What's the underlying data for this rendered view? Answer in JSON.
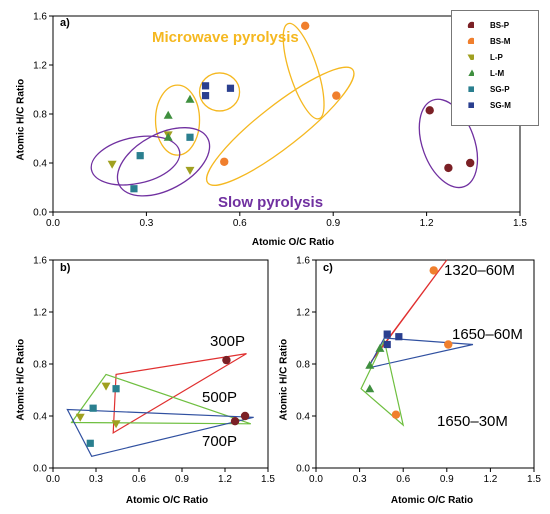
{
  "colors": {
    "BS-P": "#7b2025",
    "BS-M": "#f07f2d",
    "L-P": "#a0a020",
    "L-M": "#3f8f3f",
    "SG-P": "#2a7f8f",
    "SG-M": "#2a3f8f",
    "microwave_outline": "#f5b820",
    "slow_outline": "#7030a0",
    "tri_300": "#e03030",
    "tri_500": "#6fbf40",
    "tri_700": "#3050a0"
  },
  "text": {
    "panel_a": "a)",
    "panel_b": "b)",
    "panel_c": "c)",
    "microwave": "Microwave pyrolysis",
    "slow": "Slow pyrolysis",
    "ann_300P": "300P",
    "ann_500P": "500P",
    "ann_700P": "700P",
    "ann_1320": "1320–60M",
    "ann_1650_60": "1650–60M",
    "ann_1650_30": "1650–30M"
  },
  "chart_data": [
    {
      "type": "scatter",
      "panel": "a",
      "xlabel": "Atomic O/C Ratio",
      "ylabel": "Atomic H/C Ratio",
      "xlim": [
        0,
        1.5
      ],
      "ylim": [
        0,
        1.6
      ],
      "xticks": [
        "0.0",
        "0.3",
        "0.6",
        "0.9",
        "1.2",
        "1.5"
      ],
      "yticks": [
        "0.0",
        "0.4",
        "0.8",
        "1.2",
        "1.6"
      ],
      "legend": "top-right",
      "series": [
        {
          "name": "BS-P",
          "marker": "circle",
          "points": [
            [
              1.21,
              0.83
            ],
            [
              1.27,
              0.36
            ],
            [
              1.34,
              0.4
            ]
          ]
        },
        {
          "name": "BS-M",
          "marker": "circle",
          "points": [
            [
              0.81,
              1.52
            ],
            [
              0.91,
              0.95
            ],
            [
              0.55,
              0.41
            ]
          ]
        },
        {
          "name": "L-P",
          "marker": "triangle-down",
          "points": [
            [
              0.19,
              0.39
            ],
            [
              0.37,
              0.63
            ],
            [
              0.44,
              0.34
            ]
          ]
        },
        {
          "name": "L-M",
          "marker": "triangle-up",
          "points": [
            [
              0.37,
              0.79
            ],
            [
              0.44,
              0.92
            ],
            [
              0.37,
              0.61
            ]
          ]
        },
        {
          "name": "SG-P",
          "marker": "square",
          "points": [
            [
              0.28,
              0.46
            ],
            [
              0.26,
              0.19
            ],
            [
              0.44,
              0.61
            ]
          ]
        },
        {
          "name": "SG-M",
          "marker": "square",
          "points": [
            [
              0.49,
              1.03
            ],
            [
              0.49,
              0.95
            ],
            [
              0.57,
              1.01
            ]
          ]
        }
      ]
    },
    {
      "type": "scatter",
      "panel": "b",
      "xlabel": "Atomic O/C Ratio",
      "ylabel": "Atomic H/C Ratio",
      "xlim": [
        0,
        1.5
      ],
      "ylim": [
        0,
        1.6
      ],
      "xticks": [
        "0.0",
        "0.3",
        "0.6",
        "0.9",
        "1.2",
        "1.5"
      ],
      "yticks": [
        "0.0",
        "0.4",
        "0.8",
        "1.2",
        "1.6"
      ],
      "series": [
        {
          "name": "BS-P",
          "marker": "circle",
          "points": [
            [
              1.21,
              0.83
            ],
            [
              1.27,
              0.36
            ],
            [
              1.34,
              0.4
            ]
          ]
        },
        {
          "name": "L-P",
          "marker": "triangle-down",
          "points": [
            [
              0.19,
              0.39
            ],
            [
              0.37,
              0.63
            ],
            [
              0.44,
              0.34
            ]
          ]
        },
        {
          "name": "SG-P",
          "marker": "square",
          "points": [
            [
              0.28,
              0.46
            ],
            [
              0.26,
              0.19
            ],
            [
              0.44,
              0.61
            ]
          ]
        }
      ],
      "triangles": [
        {
          "label": "300P",
          "vertices": [
            [
              0.42,
              0.27
            ],
            [
              1.35,
              0.88
            ],
            [
              0.44,
              0.72
            ]
          ]
        },
        {
          "label": "500P",
          "vertices": [
            [
              0.13,
              0.35
            ],
            [
              0.37,
              0.72
            ],
            [
              1.38,
              0.34
            ]
          ]
        },
        {
          "label": "700P",
          "vertices": [
            [
              0.1,
              0.45
            ],
            [
              0.27,
              0.09
            ],
            [
              1.4,
              0.39
            ]
          ]
        }
      ]
    },
    {
      "type": "scatter",
      "panel": "c",
      "xlabel": "Atomic O/C Ratio",
      "ylabel": "Atomic H/C Ratio",
      "xlim": [
        0,
        1.5
      ],
      "ylim": [
        0,
        1.6
      ],
      "xticks": [
        "0.0",
        "0.3",
        "0.6",
        "0.9",
        "1.2",
        "1.5"
      ],
      "yticks": [
        "0.0",
        "0.4",
        "0.8",
        "1.2",
        "1.6"
      ],
      "series": [
        {
          "name": "BS-M",
          "marker": "circle",
          "points": [
            [
              0.81,
              1.52
            ],
            [
              0.91,
              0.95
            ],
            [
              0.55,
              0.41
            ]
          ]
        },
        {
          "name": "L-M",
          "marker": "triangle-up",
          "points": [
            [
              0.37,
              0.79
            ],
            [
              0.44,
              0.92
            ],
            [
              0.37,
              0.61
            ]
          ]
        },
        {
          "name": "SG-M",
          "marker": "square",
          "points": [
            [
              0.49,
              1.03
            ],
            [
              0.49,
              0.95
            ],
            [
              0.57,
              1.01
            ]
          ]
        }
      ],
      "triangles": [
        {
          "label": "1320–60M",
          "vertices": [
            [
              0.38,
              0.82
            ],
            [
              0.9,
              1.6
            ],
            [
              0.47,
              0.95
            ]
          ]
        },
        {
          "label": "1650–60M",
          "vertices": [
            [
              0.36,
              0.77
            ],
            [
              1.08,
              0.95
            ],
            [
              0.47,
              1.0
            ]
          ]
        },
        {
          "label": "1650–30M",
          "vertices": [
            [
              0.31,
              0.61
            ],
            [
              0.6,
              0.33
            ],
            [
              0.47,
              0.98
            ]
          ]
        }
      ]
    }
  ]
}
